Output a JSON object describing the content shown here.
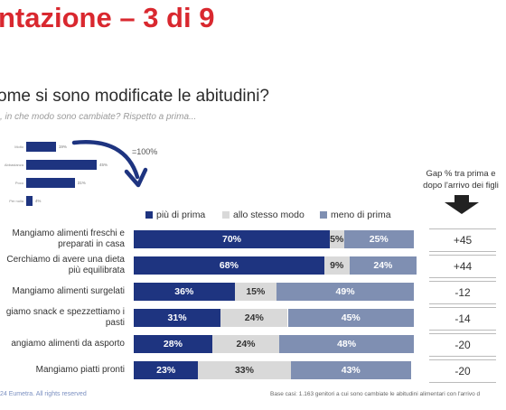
{
  "title": "ntazione – 3 di 9",
  "question": "ome si sono modificate le abitudini?",
  "subquestion": ", in che modo sono cambiate? Rispetto a prima...",
  "mini_chart": {
    "items": [
      {
        "label": "Molto",
        "value_label": "19%",
        "value": 19
      },
      {
        "label": "Abbastanza",
        "value_label": "45%",
        "value": 45
      },
      {
        "label": "Poco",
        "value_label": "31%",
        "value": 31
      },
      {
        "label": "Per nulla",
        "value_label": "4%",
        "value": 4
      }
    ],
    "note": "=100%"
  },
  "gap_header": [
    "Gap % tra prima e",
    "dopo l'arrivo dei figli"
  ],
  "legend": [
    {
      "label": "più di prima",
      "color": "#1e3480"
    },
    {
      "label": "allo stesso modo",
      "color": "#d9d9d9"
    },
    {
      "label": "meno di prima",
      "color": "#7f8fb2"
    }
  ],
  "chart_data": {
    "type": "bar",
    "orientation": "horizontal-stacked-100",
    "categories": [
      "Mangiamo alimenti freschi e preparati in casa",
      "Cerchiamo di avere una dieta più equilibrata",
      "Mangiamo alimenti surgelati",
      "giamo snack e spezzettiamo i pasti",
      "angiamo alimenti da asporto",
      "Mangiamo piatti pronti"
    ],
    "category_lines": [
      [
        "Mangiamo alimenti freschi e",
        "preparati in casa"
      ],
      [
        "Cerchiamo di avere una dieta",
        "più equilibrata"
      ],
      [
        "Mangiamo alimenti surgelati"
      ],
      [
        "giamo snack e spezzettiamo i",
        "pasti"
      ],
      [
        "angiamo alimenti da asporto"
      ],
      [
        "Mangiamo piatti pronti"
      ]
    ],
    "series": [
      {
        "name": "più di prima",
        "values": [
          70,
          68,
          36,
          31,
          28,
          23
        ]
      },
      {
        "name": "allo stesso modo",
        "values": [
          5,
          9,
          15,
          24,
          24,
          33
        ]
      },
      {
        "name": "meno di prima",
        "values": [
          25,
          24,
          49,
          45,
          48,
          43
        ]
      }
    ],
    "gap": [
      "+45",
      "+44",
      "-12",
      "-14",
      "-20",
      "-20"
    ]
  },
  "footer_left": "24 Eumetra. All rights reserved",
  "footer_right": "Base casi: 1.163 genitori a cui sono cambiate le abitudini alimentari con l'arrivo d"
}
